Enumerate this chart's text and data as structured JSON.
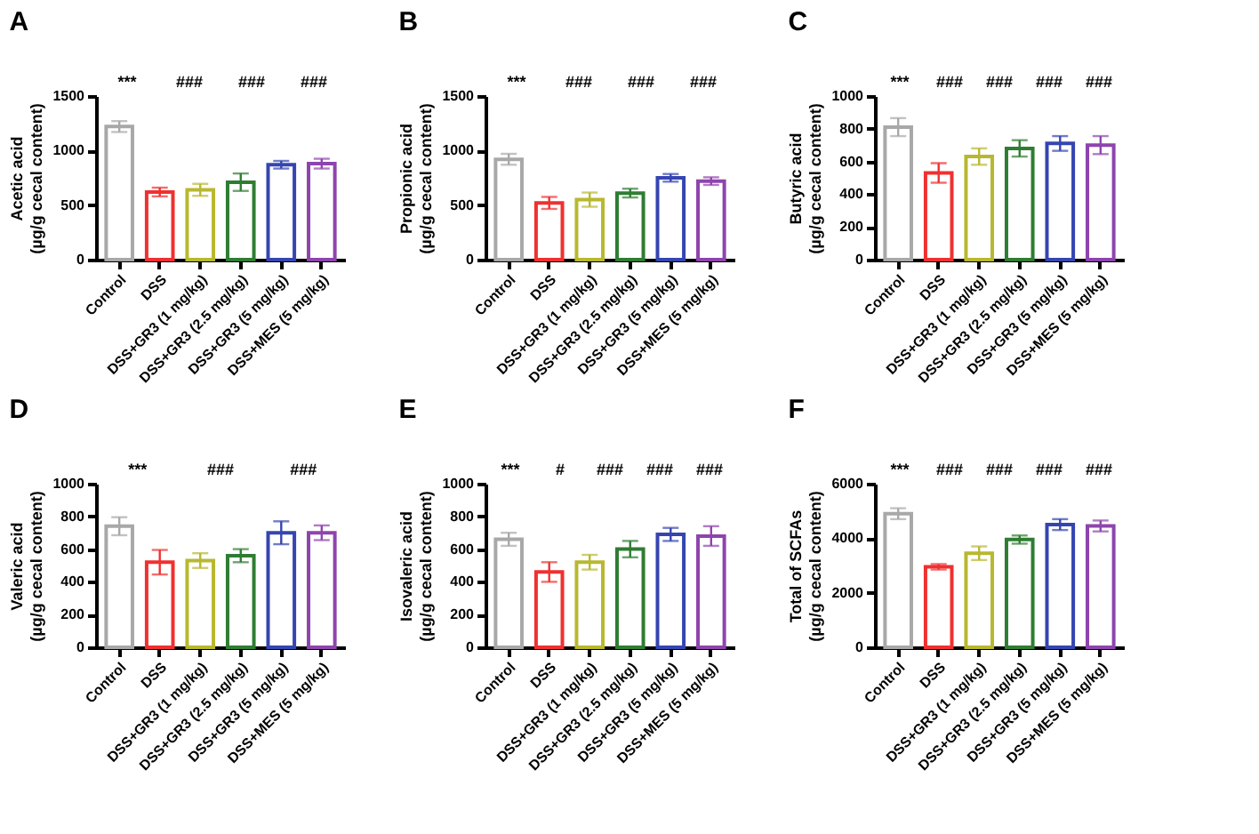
{
  "chart_data": [
    {
      "type": "bar",
      "title": "A",
      "ylabel": "Acetic acid\n(µg/g cecal content)",
      "categories": [
        "Control",
        "DSS",
        "DSS+GR3 (1 mg/kg)",
        "DSS+GR3 (2.5 mg/kg)",
        "DSS+GR3 (5 mg/kg)",
        "DSS+MES (5 mg/kg)"
      ],
      "values": [
        1220,
        620,
        640,
        710,
        870,
        880
      ],
      "errors": [
        50,
        40,
        55,
        80,
        35,
        45
      ],
      "colors": [
        "#a8a8a8",
        "#f03030",
        "#b8b830",
        "#2e7d32",
        "#3545b0",
        "#8e44ad"
      ],
      "ylim": [
        0,
        1500
      ],
      "yticks": [
        0,
        500,
        1000,
        1500
      ],
      "annotations": [
        "***",
        "###",
        "###",
        "###"
      ]
    },
    {
      "type": "bar",
      "title": "B",
      "ylabel": "Propionic acid\n(µg/g cecal content)",
      "categories": [
        "Control",
        "DSS",
        "DSS+GR3 (1 mg/kg)",
        "DSS+GR3 (2.5 mg/kg)",
        "DSS+GR3 (5 mg/kg)",
        "DSS+MES (5 mg/kg)"
      ],
      "values": [
        920,
        520,
        550,
        610,
        750,
        720
      ],
      "errors": [
        50,
        55,
        65,
        40,
        35,
        35
      ],
      "colors": [
        "#a8a8a8",
        "#f03030",
        "#b8b830",
        "#2e7d32",
        "#3545b0",
        "#8e44ad"
      ],
      "ylim": [
        0,
        1500
      ],
      "yticks": [
        0,
        500,
        1000,
        1500
      ],
      "annotations": [
        "***",
        "###",
        "###",
        "###"
      ]
    },
    {
      "type": "bar",
      "title": "C",
      "ylabel": "Butyric acid\n(µg/g cecal content)",
      "categories": [
        "Control",
        "DSS",
        "DSS+GR3 (1 mg/kg)",
        "DSS+GR3 (2.5 mg/kg)",
        "DSS+GR3 (5 mg/kg)",
        "DSS+MES (5 mg/kg)"
      ],
      "values": [
        810,
        530,
        630,
        680,
        710,
        700
      ],
      "errors": [
        55,
        60,
        50,
        50,
        45,
        55
      ],
      "colors": [
        "#a8a8a8",
        "#f03030",
        "#b8b830",
        "#2e7d32",
        "#3545b0",
        "#8e44ad"
      ],
      "ylim": [
        0,
        1000
      ],
      "yticks": [
        0,
        200,
        400,
        600,
        800,
        1000
      ],
      "annotations": [
        "***",
        "###",
        "###",
        "###",
        "###"
      ]
    },
    {
      "type": "bar",
      "title": "D",
      "ylabel": "Valeric acid\n(µg/g cecal content)",
      "categories": [
        "Control",
        "DSS",
        "DSS+GR3 (1 mg/kg)",
        "DSS+GR3 (2.5 mg/kg)",
        "DSS+GR3 (5 mg/kg)",
        "DSS+MES (5 mg/kg)"
      ],
      "values": [
        740,
        520,
        530,
        560,
        700,
        700
      ],
      "errors": [
        55,
        75,
        45,
        40,
        70,
        45
      ],
      "colors": [
        "#a8a8a8",
        "#f03030",
        "#b8b830",
        "#2e7d32",
        "#3545b0",
        "#8e44ad"
      ],
      "ylim": [
        0,
        1000
      ],
      "yticks": [
        0,
        200,
        400,
        600,
        800,
        1000
      ],
      "annotations": [
        "***",
        "###",
        "###"
      ]
    },
    {
      "type": "bar",
      "title": "E",
      "ylabel": "Isovaleric acid\n(µg/g cecal content)",
      "categories": [
        "Control",
        "DSS",
        "DSS+GR3 (1 mg/kg)",
        "DSS+GR3 (2.5 mg/kg)",
        "DSS+GR3 (5 mg/kg)",
        "DSS+MES (5 mg/kg)"
      ],
      "values": [
        660,
        460,
        520,
        600,
        690,
        680
      ],
      "errors": [
        40,
        60,
        45,
        50,
        40,
        60
      ],
      "colors": [
        "#a8a8a8",
        "#f03030",
        "#b8b830",
        "#2e7d32",
        "#3545b0",
        "#8e44ad"
      ],
      "ylim": [
        0,
        1000
      ],
      "yticks": [
        0,
        200,
        400,
        600,
        800,
        1000
      ],
      "annotations": [
        "***",
        "#",
        "###",
        "###",
        "###"
      ]
    },
    {
      "type": "bar",
      "title": "F",
      "ylabel": "Total of SCFAs\n(µg/g cecal content)",
      "categories": [
        "Control",
        "DSS",
        "DSS+GR3 (1 mg/kg)",
        "DSS+GR3 (2.5 mg/kg)",
        "DSS+GR3 (5 mg/kg)",
        "DSS+MES (5 mg/kg)"
      ],
      "values": [
        4900,
        2950,
        3450,
        3950,
        4500,
        4450
      ],
      "errors": [
        200,
        100,
        250,
        150,
        200,
        200
      ],
      "colors": [
        "#a8a8a8",
        "#f03030",
        "#b8b830",
        "#2e7d32",
        "#3545b0",
        "#8e44ad"
      ],
      "ylim": [
        0,
        6000
      ],
      "yticks": [
        0,
        2000,
        4000,
        6000
      ],
      "annotations": [
        "***",
        "###",
        "###",
        "###",
        "###"
      ]
    }
  ]
}
